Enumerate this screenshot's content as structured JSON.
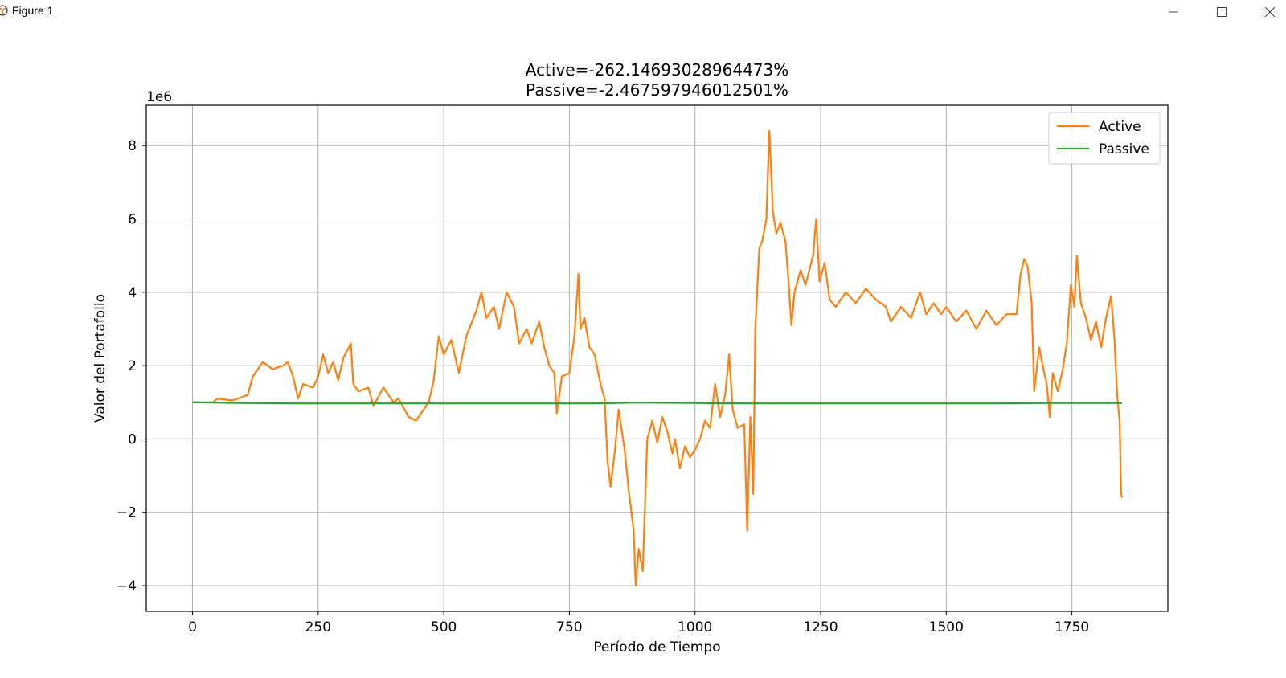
{
  "window": {
    "title": "Figure 1",
    "icons": {
      "app": "matplotlib-icon",
      "minimize": "minimize-icon",
      "maximize": "maximize-icon",
      "close": "close-icon"
    }
  },
  "colors": {
    "active": "#ff7f0e",
    "passive": "#2ca02c",
    "grid": "#b0b0b0",
    "axes": "#000000"
  },
  "chart_data": {
    "type": "line",
    "title_lines": [
      "Active=-262.14693028964473%",
      "Passive=-2.467597946012501%"
    ],
    "xlabel": "Período de Tiempo",
    "ylabel": "Valor del Portafolio",
    "y_offset_label": "1e6",
    "xlim": [
      -92,
      1941
    ],
    "ylim": [
      -4.7,
      9.1
    ],
    "x_ticks": [
      0,
      250,
      500,
      750,
      1000,
      1250,
      1500,
      1750
    ],
    "x_tick_labels": [
      "0",
      "250",
      "500",
      "750",
      "1000",
      "1250",
      "1500",
      "1750"
    ],
    "y_ticks": [
      -4,
      -2,
      0,
      2,
      4,
      6,
      8
    ],
    "y_tick_labels": [
      "−4",
      "−2",
      "0",
      "2",
      "4",
      "6",
      "8"
    ],
    "grid": true,
    "legend_position": "upper right",
    "series": [
      {
        "name": "Active",
        "color": "#ff7f0e",
        "points": [
          [
            0,
            1.0
          ],
          [
            40,
            1.0
          ],
          [
            50,
            1.1
          ],
          [
            80,
            1.05
          ],
          [
            100,
            1.15
          ],
          [
            110,
            1.2
          ],
          [
            120,
            1.7
          ],
          [
            140,
            2.1
          ],
          [
            160,
            1.9
          ],
          [
            180,
            2.0
          ],
          [
            190,
            2.1
          ],
          [
            200,
            1.7
          ],
          [
            210,
            1.1
          ],
          [
            220,
            1.5
          ],
          [
            240,
            1.4
          ],
          [
            250,
            1.7
          ],
          [
            260,
            2.3
          ],
          [
            270,
            1.8
          ],
          [
            280,
            2.1
          ],
          [
            290,
            1.6
          ],
          [
            300,
            2.2
          ],
          [
            315,
            2.6
          ],
          [
            320,
            1.5
          ],
          [
            330,
            1.3
          ],
          [
            350,
            1.4
          ],
          [
            360,
            0.9
          ],
          [
            380,
            1.4
          ],
          [
            400,
            1.0
          ],
          [
            410,
            1.1
          ],
          [
            430,
            0.6
          ],
          [
            445,
            0.5
          ],
          [
            460,
            0.8
          ],
          [
            470,
            1.0
          ],
          [
            480,
            1.6
          ],
          [
            490,
            2.8
          ],
          [
            500,
            2.3
          ],
          [
            515,
            2.7
          ],
          [
            530,
            1.8
          ],
          [
            545,
            2.8
          ],
          [
            565,
            3.5
          ],
          [
            575,
            4.0
          ],
          [
            585,
            3.3
          ],
          [
            600,
            3.6
          ],
          [
            610,
            3.0
          ],
          [
            625,
            4.0
          ],
          [
            640,
            3.6
          ],
          [
            650,
            2.6
          ],
          [
            665,
            3.0
          ],
          [
            675,
            2.6
          ],
          [
            690,
            3.2
          ],
          [
            700,
            2.5
          ],
          [
            710,
            2.0
          ],
          [
            720,
            1.8
          ],
          [
            725,
            0.7
          ],
          [
            735,
            1.7
          ],
          [
            750,
            1.8
          ],
          [
            760,
            2.8
          ],
          [
            768,
            4.5
          ],
          [
            772,
            3.0
          ],
          [
            780,
            3.3
          ],
          [
            790,
            2.5
          ],
          [
            800,
            2.3
          ],
          [
            812,
            1.5
          ],
          [
            820,
            1.1
          ],
          [
            826,
            -0.6
          ],
          [
            832,
            -1.3
          ],
          [
            840,
            -0.4
          ],
          [
            848,
            0.8
          ],
          [
            860,
            -0.3
          ],
          [
            868,
            -1.4
          ],
          [
            878,
            -2.5
          ],
          [
            882,
            -4.0
          ],
          [
            888,
            -3.0
          ],
          [
            896,
            -3.6
          ],
          [
            905,
            0.0
          ],
          [
            915,
            0.5
          ],
          [
            925,
            -0.1
          ],
          [
            935,
            0.6
          ],
          [
            945,
            0.2
          ],
          [
            955,
            -0.4
          ],
          [
            960,
            0.0
          ],
          [
            970,
            -0.8
          ],
          [
            980,
            -0.2
          ],
          [
            990,
            -0.5
          ],
          [
            1000,
            -0.3
          ],
          [
            1010,
            0.0
          ],
          [
            1020,
            0.5
          ],
          [
            1030,
            0.3
          ],
          [
            1040,
            1.5
          ],
          [
            1050,
            0.6
          ],
          [
            1060,
            1.2
          ],
          [
            1068,
            2.3
          ],
          [
            1075,
            0.8
          ],
          [
            1085,
            0.3
          ],
          [
            1098,
            0.4
          ],
          [
            1104,
            -2.5
          ],
          [
            1110,
            0.6
          ],
          [
            1116,
            -1.5
          ],
          [
            1120,
            3.0
          ],
          [
            1128,
            5.2
          ],
          [
            1134,
            5.4
          ],
          [
            1142,
            6.0
          ],
          [
            1148,
            8.4
          ],
          [
            1155,
            6.2
          ],
          [
            1162,
            5.6
          ],
          [
            1170,
            5.9
          ],
          [
            1180,
            5.4
          ],
          [
            1185,
            4.5
          ],
          [
            1192,
            3.1
          ],
          [
            1198,
            4.0
          ],
          [
            1210,
            4.6
          ],
          [
            1220,
            4.2
          ],
          [
            1235,
            5.0
          ],
          [
            1241,
            6.0
          ],
          [
            1248,
            4.3
          ],
          [
            1258,
            4.8
          ],
          [
            1268,
            3.8
          ],
          [
            1280,
            3.6
          ],
          [
            1300,
            4.0
          ],
          [
            1320,
            3.7
          ],
          [
            1340,
            4.1
          ],
          [
            1360,
            3.8
          ],
          [
            1380,
            3.6
          ],
          [
            1390,
            3.2
          ],
          [
            1410,
            3.6
          ],
          [
            1430,
            3.3
          ],
          [
            1448,
            4.0
          ],
          [
            1460,
            3.4
          ],
          [
            1475,
            3.7
          ],
          [
            1490,
            3.4
          ],
          [
            1500,
            3.6
          ],
          [
            1520,
            3.2
          ],
          [
            1540,
            3.5
          ],
          [
            1560,
            3.0
          ],
          [
            1580,
            3.5
          ],
          [
            1600,
            3.1
          ],
          [
            1620,
            3.4
          ],
          [
            1640,
            3.4
          ],
          [
            1648,
            4.5
          ],
          [
            1655,
            4.9
          ],
          [
            1662,
            4.7
          ],
          [
            1670,
            3.7
          ],
          [
            1675,
            1.3
          ],
          [
            1685,
            2.5
          ],
          [
            1692,
            2.0
          ],
          [
            1700,
            1.5
          ],
          [
            1706,
            0.6
          ],
          [
            1712,
            1.8
          ],
          [
            1722,
            1.3
          ],
          [
            1732,
            1.9
          ],
          [
            1740,
            2.6
          ],
          [
            1748,
            4.2
          ],
          [
            1755,
            3.6
          ],
          [
            1760,
            5.0
          ],
          [
            1768,
            3.7
          ],
          [
            1778,
            3.3
          ],
          [
            1788,
            2.7
          ],
          [
            1798,
            3.2
          ],
          [
            1808,
            2.5
          ],
          [
            1818,
            3.3
          ],
          [
            1828,
            3.9
          ],
          [
            1835,
            2.7
          ],
          [
            1840,
            1.2
          ],
          [
            1845,
            0.5
          ],
          [
            1848,
            -1.5
          ],
          [
            1850,
            -1.6
          ]
        ]
      },
      {
        "name": "Passive",
        "color": "#2ca02c",
        "points": [
          [
            0,
            1.0
          ],
          [
            100,
            0.98
          ],
          [
            200,
            0.97
          ],
          [
            300,
            0.97
          ],
          [
            400,
            0.97
          ],
          [
            500,
            0.97
          ],
          [
            600,
            0.97
          ],
          [
            700,
            0.97
          ],
          [
            800,
            0.97
          ],
          [
            880,
            0.99
          ],
          [
            1000,
            0.98
          ],
          [
            1100,
            0.97
          ],
          [
            1200,
            0.97
          ],
          [
            1300,
            0.97
          ],
          [
            1400,
            0.97
          ],
          [
            1500,
            0.97
          ],
          [
            1600,
            0.97
          ],
          [
            1700,
            0.98
          ],
          [
            1850,
            0.98
          ]
        ]
      }
    ]
  }
}
